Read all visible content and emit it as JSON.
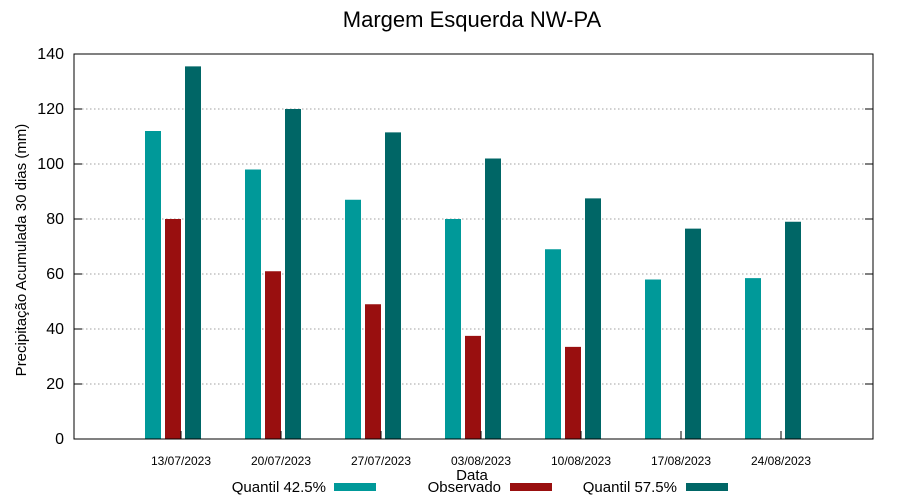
{
  "chart_data": {
    "type": "bar",
    "title": "Margem Esquerda NW-PA",
    "xlabel": "Data",
    "ylabel": "Precipitação Acumulada 30 dias (mm)",
    "ylim": [
      0,
      140
    ],
    "yticks": [
      0,
      20,
      40,
      60,
      80,
      100,
      120,
      140
    ],
    "grid": true,
    "legend_position": "bottom",
    "categories": [
      "13/07/2023",
      "20/07/2023",
      "27/07/2023",
      "03/08/2023",
      "10/08/2023",
      "17/08/2023",
      "24/08/2023"
    ],
    "series": [
      {
        "name": "Quantil 42.5%",
        "color": "#009999",
        "values": [
          112,
          98,
          87,
          80,
          69,
          58,
          58.5
        ]
      },
      {
        "name": "Observado",
        "color": "#990f0f",
        "values": [
          80,
          61,
          49,
          37.5,
          33.5,
          null,
          null
        ]
      },
      {
        "name": "Quantil 57.5%",
        "color": "#006666",
        "values": [
          135.5,
          120,
          111.5,
          102,
          87.5,
          76.5,
          79
        ]
      }
    ]
  }
}
